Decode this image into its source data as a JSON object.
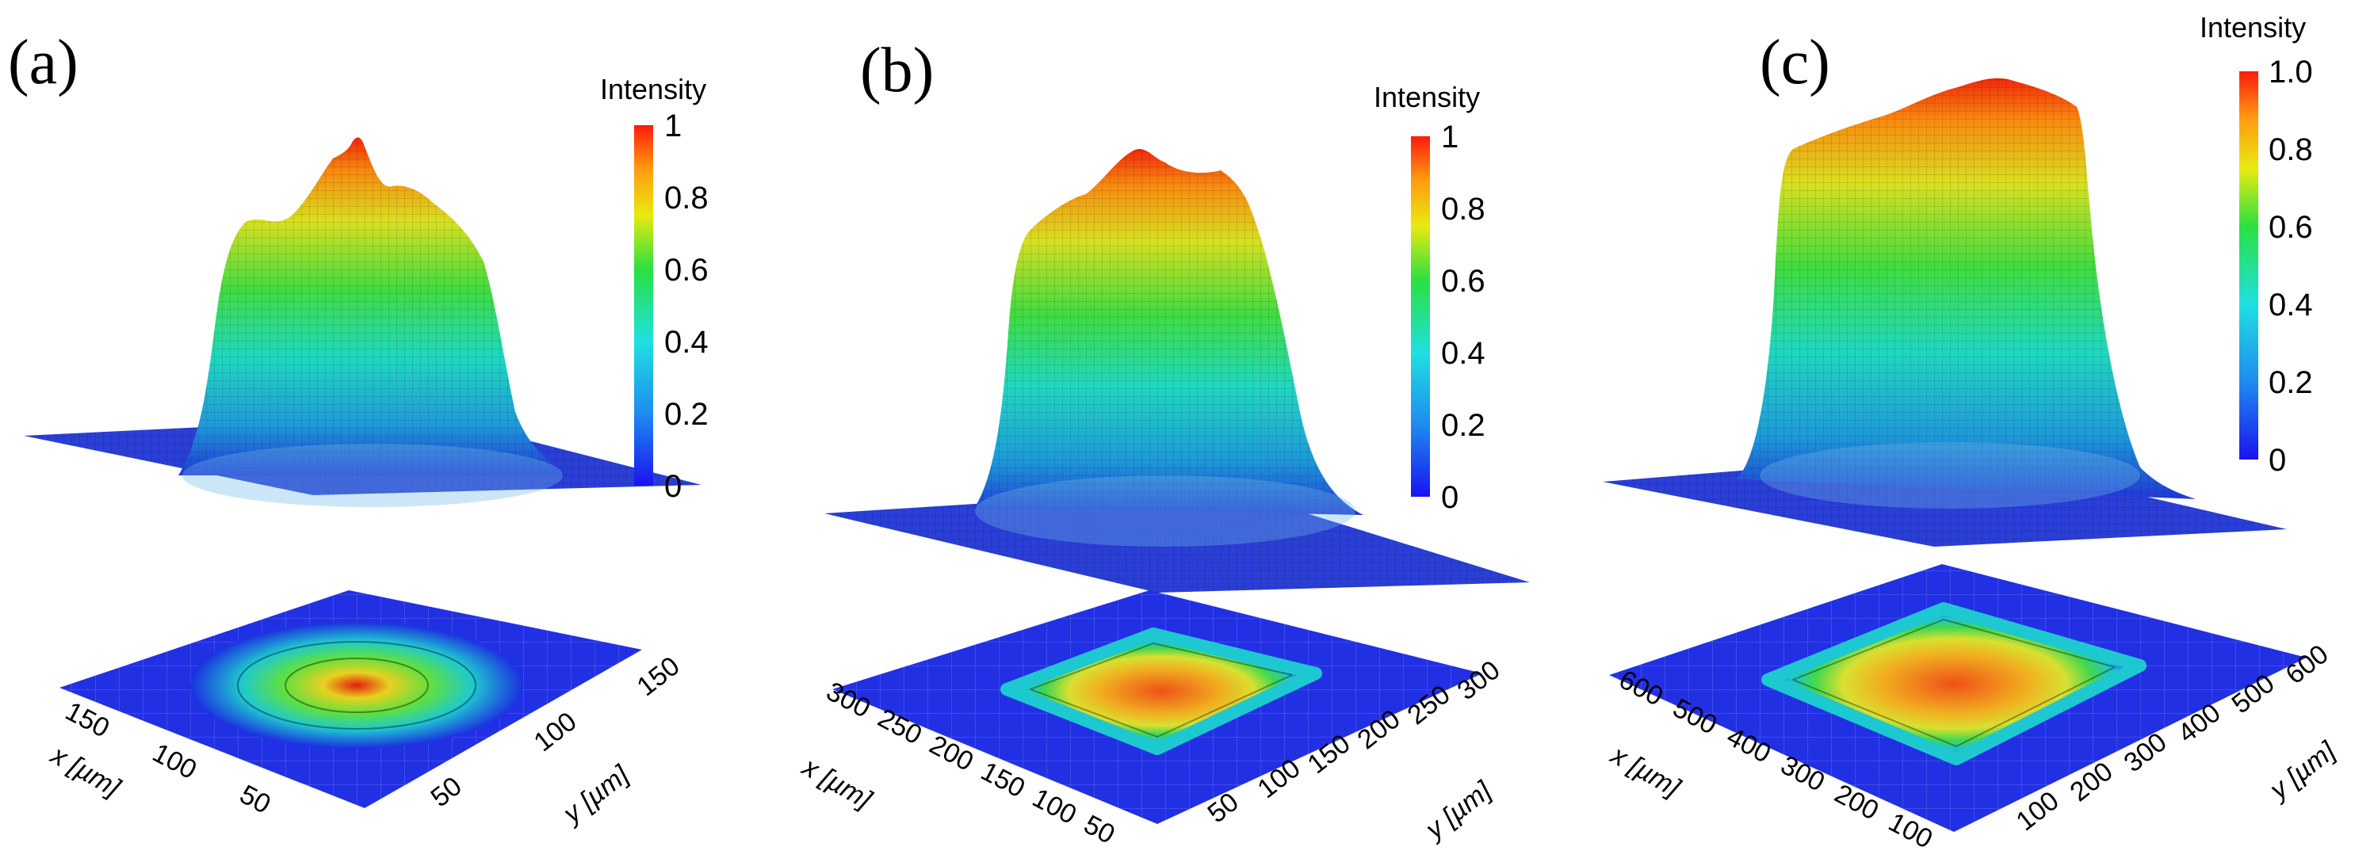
{
  "figure_caption_letters": [
    "(a)",
    "(b)",
    "(c)"
  ],
  "chart_data": [
    {
      "type": "heatmap",
      "panel": "(a)",
      "title": "",
      "colorbar": {
        "label": "Intensity",
        "ticks": [
          "0",
          "0.2",
          "0.4",
          "0.6",
          "0.8",
          "1"
        ],
        "range": [
          0,
          1
        ]
      },
      "x_axis": {
        "label": "x [µm]",
        "ticks": [
          "150",
          "100",
          "50"
        ],
        "range": [
          0,
          170
        ]
      },
      "y_axis": {
        "label": "y [µm]",
        "ticks": [
          "50",
          "100",
          "150"
        ],
        "range": [
          0,
          170
        ]
      },
      "intensity_peak": 1.0,
      "profile": "irregular peaked top-hat with central spike",
      "colors": {
        "low": "#1f2ee0",
        "mid": "#22dd55",
        "high": "#ff2a0a"
      }
    },
    {
      "type": "heatmap",
      "panel": "(b)",
      "title": "",
      "colorbar": {
        "label": "Intensity",
        "ticks": [
          "0",
          "0.2",
          "0.4",
          "0.6",
          "0.8",
          "1"
        ],
        "range": [
          0,
          1
        ]
      },
      "x_axis": {
        "label": "x [µm]",
        "ticks": [
          "300",
          "250",
          "200",
          "150",
          "100",
          "50"
        ],
        "range": [
          0,
          320
        ]
      },
      "y_axis": {
        "label": "y [µm]",
        "ticks": [
          "50",
          "100",
          "150",
          "200",
          "250",
          "300"
        ],
        "range": [
          0,
          320
        ]
      },
      "intensity_peak": 1.0,
      "profile": "square flat-top with rounded edges",
      "colors": {
        "low": "#1f2ee0",
        "mid": "#22dd55",
        "high": "#ff2a0a"
      }
    },
    {
      "type": "heatmap",
      "panel": "(c)",
      "title": "",
      "colorbar": {
        "label": "Intensity",
        "ticks": [
          "0",
          "0.2",
          "0.4",
          "0.6",
          "0.8",
          "1.0"
        ],
        "range": [
          0,
          1
        ]
      },
      "x_axis": {
        "label": "x [µm]",
        "ticks": [
          "600",
          "500",
          "400",
          "300",
          "200",
          "100"
        ],
        "range": [
          0,
          650
        ]
      },
      "y_axis": {
        "label": "y [µm]",
        "ticks": [
          "100",
          "200",
          "300",
          "400",
          "500",
          "600"
        ],
        "range": [
          0,
          650
        ]
      },
      "intensity_peak": 1.0,
      "profile": "large square flat-top with noisy plateau",
      "colors": {
        "low": "#1f2ee0",
        "mid": "#22dd55",
        "high": "#ff2a0a"
      }
    }
  ]
}
